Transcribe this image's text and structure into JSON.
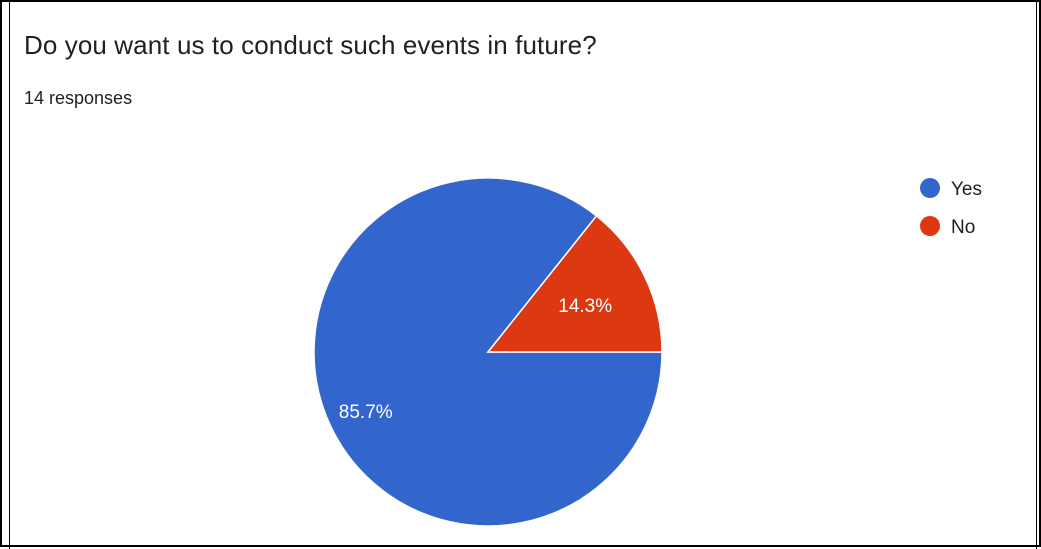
{
  "question": "Do you want us to conduct such events in future?",
  "responses": "14 responses",
  "chart_data": {
    "type": "pie",
    "title": "Do you want us to conduct such events in future?",
    "categories": [
      "Yes",
      "No"
    ],
    "values": [
      12,
      2
    ],
    "percent_labels": [
      "85.7%",
      "14.3%"
    ],
    "colors": [
      "#3366cc",
      "#dc3912"
    ],
    "legend": "right"
  }
}
